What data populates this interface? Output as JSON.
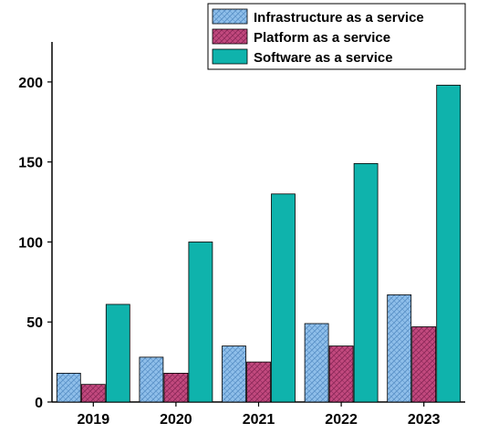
{
  "chart_data": {
    "type": "bar",
    "title": "",
    "xlabel": "",
    "ylabel": "",
    "categories": [
      "2019",
      "2020",
      "2021",
      "2022",
      "2023"
    ],
    "series": [
      {
        "name": "Infrastructure as a service",
        "values": [
          18,
          28,
          35,
          49,
          67
        ],
        "color": "#8fbfea",
        "pattern": "hatch-blue"
      },
      {
        "name": "Platform as a service",
        "values": [
          11,
          18,
          25,
          35,
          47
        ],
        "color": "#c2497e",
        "pattern": "hatch-magenta"
      },
      {
        "name": "Software as a service",
        "values": [
          61,
          100,
          130,
          149,
          198
        ],
        "color": "#0fb3ac",
        "pattern": "solid"
      }
    ],
    "ylim": [
      0,
      225
    ],
    "yticks": [
      0,
      50,
      100,
      150,
      200
    ],
    "grid": false,
    "legend_position": "top-right"
  }
}
